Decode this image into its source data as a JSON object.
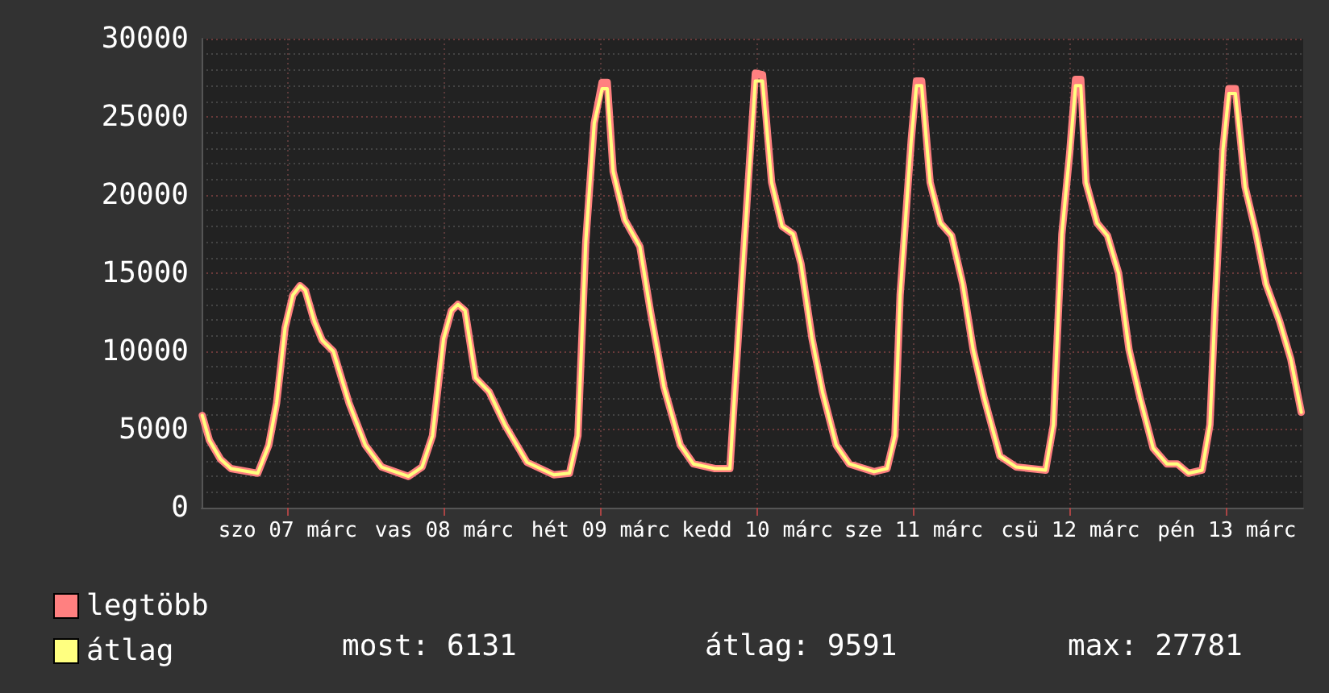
{
  "chart_data": {
    "type": "line",
    "x": [
      "--03-06T22:54",
      "--03-07T00:00",
      "--03-07T01:42",
      "--03-07T03:18",
      "--03-07T07:24",
      "--03-07T09:06",
      "--03-07T10:18",
      "--03-07T11:36",
      "--03-07T12:48",
      "--03-07T13:54",
      "--03-07T14:42",
      "--03-07T16:06",
      "--03-07T17:18",
      "--03-07T19:00",
      "--03-07T21:24",
      "--03-07T23:54",
      "--03-08T02:24",
      "--03-08T06:30",
      "--03-08T08:36",
      "--03-08T10:12",
      "--03-08T11:54",
      "--03-08T13:06",
      "--03-08T14:06",
      "--03-08T15:12",
      "--03-08T16:48",
      "--03-08T18:54",
      "--03-08T21:18",
      "--03-09T00:42",
      "--03-09T04:48",
      "--03-09T07:12",
      "--03-09T08:30",
      "--03-09T09:42",
      "--03-09T11:00",
      "--03-09T12:12",
      "--03-09T13:00",
      "--03-09T13:54",
      "--03-09T15:42",
      "--03-09T18:00",
      "--03-09T19:36",
      "--03-09T21:42",
      "--03-10T00:12",
      "--03-10T02:12",
      "--03-10T05:30",
      "--03-10T07:48",
      "--03-10T09:36",
      "--03-10T11:42",
      "--03-10T12:48",
      "--03-10T14:12",
      "--03-10T15:48",
      "--03-10T17:30",
      "--03-10T18:42",
      "--03-10T20:24",
      "--03-10T22:00",
      "--03-11T00:06",
      "--03-11T02:06",
      "--03-11T05:54",
      "--03-11T07:54",
      "--03-11T09:06",
      "--03-11T09:54",
      "--03-11T11:36",
      "--03-11T12:24",
      "--03-11T13:12",
      "--03-11T14:30",
      "--03-11T16:06",
      "--03-11T17:48",
      "--03-11T19:30",
      "--03-11T21:06",
      "--03-11T22:48",
      "--03-12T01:12",
      "--03-12T03:42",
      "--03-12T08:12",
      "--03-12T09:24",
      "--03-12T10:42",
      "--03-12T11:54",
      "--03-12T12:48",
      "--03-12T13:36",
      "--03-12T14:24",
      "--03-12T16:06",
      "--03-12T17:42",
      "--03-12T19:24",
      "--03-12T21:00",
      "--03-12T22:42",
      "--03-13T00:42",
      "--03-13T02:48",
      "--03-13T04:24",
      "--03-13T06:06",
      "--03-13T08:12",
      "--03-13T09:24",
      "--03-13T10:12",
      "--03-13T11:24",
      "--03-13T12:18",
      "--03-13T13:18",
      "--03-13T14:48",
      "--03-13T16:24",
      "--03-13T18:00",
      "--03-13T20:06",
      "--03-13T21:48",
      "--03-13T23:24"
    ],
    "series": [
      {
        "name": "legtöbb",
        "color": "#ff8080",
        "values": [
          5900,
          4300,
          3100,
          2500,
          2200,
          4000,
          6700,
          11500,
          13600,
          14200,
          13900,
          11900,
          10700,
          10000,
          6700,
          4000,
          2600,
          2000,
          2600,
          4600,
          10800,
          12600,
          13000,
          12600,
          8300,
          7400,
          5300,
          2900,
          2100,
          2200,
          4600,
          17000,
          24600,
          27200,
          27200,
          21500,
          18400,
          16700,
          12600,
          7700,
          4000,
          2800,
          2500,
          2500,
          14300,
          27800,
          27700,
          20800,
          18000,
          17500,
          15600,
          10800,
          7400,
          4000,
          2800,
          2300,
          2500,
          4600,
          13600,
          23500,
          27300,
          27300,
          20800,
          18200,
          17400,
          14300,
          10100,
          7000,
          3300,
          2600,
          2400,
          5300,
          17500,
          22700,
          27400,
          27400,
          20800,
          18200,
          17400,
          15000,
          10100,
          7000,
          3800,
          2800,
          2800,
          2200,
          2400,
          5300,
          12900,
          22900,
          26800,
          26800,
          20500,
          17700,
          14300,
          11900,
          9500,
          6100
        ]
      },
      {
        "name": "átlag",
        "color": "#ffff80",
        "values": [
          5900,
          4300,
          3100,
          2500,
          2200,
          4000,
          6700,
          11500,
          13600,
          14200,
          13900,
          11900,
          10700,
          10000,
          6700,
          4000,
          2600,
          2000,
          2600,
          4600,
          10800,
          12600,
          13000,
          12600,
          8300,
          7400,
          5300,
          2900,
          2100,
          2200,
          4600,
          17000,
          24600,
          26800,
          26800,
          21500,
          18400,
          16700,
          12600,
          7700,
          4000,
          2800,
          2500,
          2500,
          14300,
          27300,
          27300,
          20800,
          18000,
          17500,
          15600,
          10800,
          7400,
          4000,
          2800,
          2300,
          2500,
          4600,
          13600,
          23500,
          27000,
          27000,
          20800,
          18200,
          17400,
          14300,
          10100,
          7000,
          3300,
          2600,
          2400,
          5300,
          17500,
          22700,
          27000,
          27000,
          20800,
          18200,
          17400,
          15000,
          10100,
          7000,
          3800,
          2800,
          2800,
          2200,
          2400,
          5300,
          12900,
          22900,
          26500,
          26500,
          20500,
          17700,
          14300,
          11900,
          9500,
          6100
        ]
      }
    ],
    "xlim": [
      "--03-06T22:48",
      "--03-13T23:42"
    ],
    "xticks": [
      {
        "value": "--03-07T12:00",
        "label": "szo 07 márc"
      },
      {
        "value": "--03-08T12:00",
        "label": "vas 08 márc"
      },
      {
        "value": "--03-09T12:00",
        "label": "hét 09 márc"
      },
      {
        "value": "--03-10T12:00",
        "label": "kedd 10 márc"
      },
      {
        "value": "--03-11T12:00",
        "label": "sze 11 márc"
      },
      {
        "value": "--03-12T12:00",
        "label": "csü 12 márc"
      },
      {
        "value": "--03-13T12:00",
        "label": "pén 13 márc"
      }
    ],
    "ylim": [
      0,
      30000
    ],
    "yticks": [
      0,
      5000,
      10000,
      15000,
      20000,
      25000,
      30000
    ],
    "annotations": [
      "most: 6131",
      "átlag: 9591",
      "max: 27781"
    ],
    "grid": true,
    "legend": "bottom left",
    "marker": "none",
    "line_style": "solid"
  }
}
